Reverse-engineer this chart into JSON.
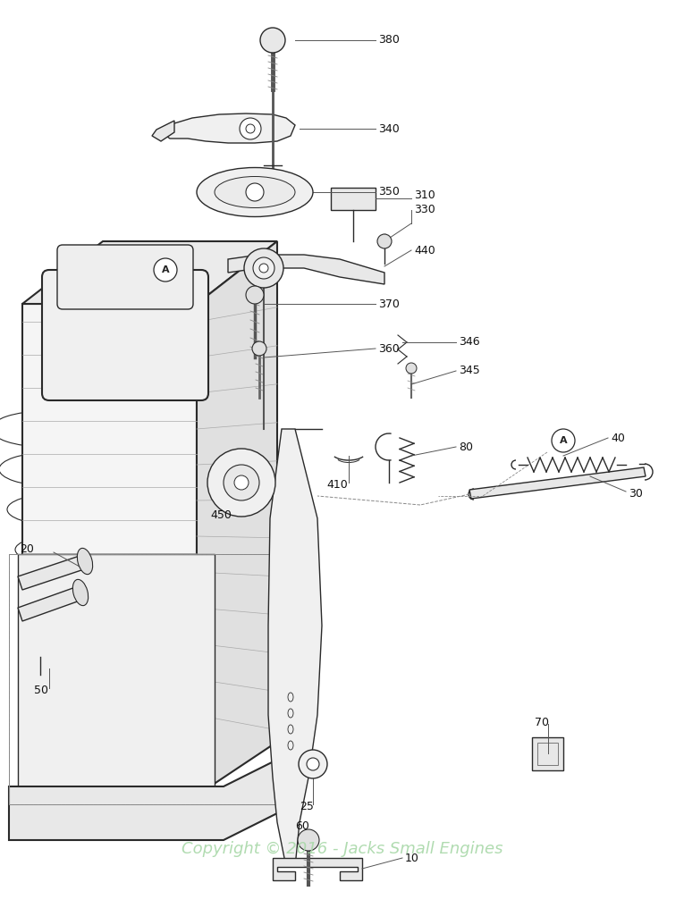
{
  "background_color": "#ffffff",
  "watermark_text": "Copyright © 2016 - Jacks Small Engines",
  "watermark_color": "#a8d8a8",
  "watermark_fontsize": 13,
  "fig_width": 7.65,
  "fig_height": 10.16,
  "dpi": 100,
  "line_color": "#2a2a2a",
  "label_fontsize": 9,
  "label_color": "#111111"
}
